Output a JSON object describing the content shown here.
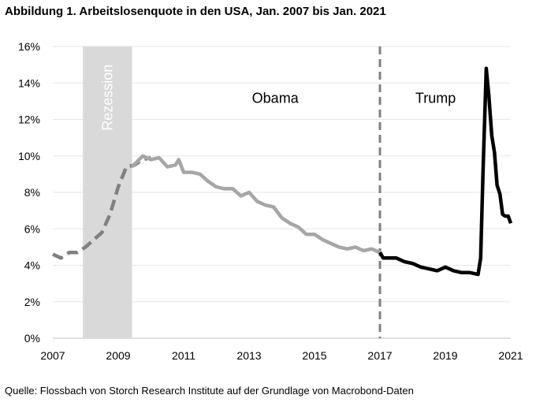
{
  "title": "Abbildung 1. Arbeitslosenquote in den USA, Jan. 2007 bis Jan. 2021",
  "source": "Quelle: Flossbach von Storch Research Institute auf der Grundlage von Macrobond-Daten",
  "colors": {
    "bush": "#808080",
    "obama": "#a6a6a6",
    "trump": "#000000",
    "recession": "#d9d9d9",
    "grid": "#e6e6e6",
    "divider": "#808080"
  },
  "chart_data": {
    "type": "line",
    "title": "Abbildung 1. Arbeitslosenquote in den USA, Jan. 2007 bis Jan. 2021",
    "xlabel": "",
    "ylabel": "",
    "xlim": [
      2007.0,
      2021.0
    ],
    "ylim": [
      0,
      16
    ],
    "x_ticks": [
      "2007",
      "2009",
      "2011",
      "2013",
      "2015",
      "2017",
      "2019",
      "2021"
    ],
    "y_ticks": [
      "0%",
      "2%",
      "4%",
      "6%",
      "8%",
      "10%",
      "12%",
      "14%",
      "16%"
    ],
    "grid": true,
    "annotations": {
      "recession": "Rezession",
      "obama": "Obama",
      "trump": "Trump"
    },
    "recession_band": [
      2007.92,
      2009.42
    ],
    "divider_x": 2017.0,
    "series": [
      {
        "style": "dashed",
        "x": [
          2007.0,
          2007.25,
          2007.5,
          2007.75,
          2008.0,
          2008.25,
          2008.5,
          2008.75,
          2009.0,
          2009.25,
          2009.5,
          2009.75,
          2010.0
        ],
        "y": [
          4.6,
          4.4,
          4.7,
          4.7,
          5.0,
          5.4,
          5.8,
          6.8,
          8.3,
          9.4,
          9.5,
          9.8,
          9.9
        ]
      },
      {
        "style": "solid",
        "x": [
          2009.42,
          2009.75,
          2010.0,
          2010.25,
          2010.5,
          2010.75,
          2010.85,
          2011.0,
          2011.25,
          2011.5,
          2011.75,
          2012.0,
          2012.25,
          2012.5,
          2012.75,
          2013.0,
          2013.25,
          2013.5,
          2013.75,
          2014.0,
          2014.25,
          2014.5,
          2014.75,
          2015.0,
          2015.25,
          2015.5,
          2015.75,
          2016.0,
          2016.25,
          2016.5,
          2016.75,
          2017.0
        ],
        "y": [
          9.4,
          10.0,
          9.8,
          9.9,
          9.4,
          9.5,
          9.8,
          9.1,
          9.1,
          9.0,
          8.6,
          8.3,
          8.2,
          8.2,
          7.8,
          8.0,
          7.5,
          7.3,
          7.2,
          6.6,
          6.3,
          6.1,
          5.7,
          5.7,
          5.4,
          5.2,
          5.0,
          4.9,
          5.0,
          4.8,
          4.9,
          4.7
        ]
      },
      {
        "style": "solid",
        "x": [
          2017.0,
          2017.1,
          2017.5,
          2017.75,
          2018.0,
          2018.25,
          2018.5,
          2018.75,
          2019.0,
          2019.25,
          2019.5,
          2019.75,
          2020.0,
          2020.08,
          2020.15,
          2020.25,
          2020.33,
          2020.42,
          2020.5,
          2020.58,
          2020.67,
          2020.75,
          2020.83,
          2020.92,
          2021.0
        ],
        "y": [
          4.7,
          4.4,
          4.4,
          4.2,
          4.1,
          3.9,
          3.8,
          3.7,
          3.9,
          3.7,
          3.6,
          3.6,
          3.5,
          4.4,
          9.0,
          14.8,
          13.3,
          11.1,
          10.2,
          8.4,
          7.9,
          6.8,
          6.7,
          6.7,
          6.3
        ]
      }
    ]
  }
}
